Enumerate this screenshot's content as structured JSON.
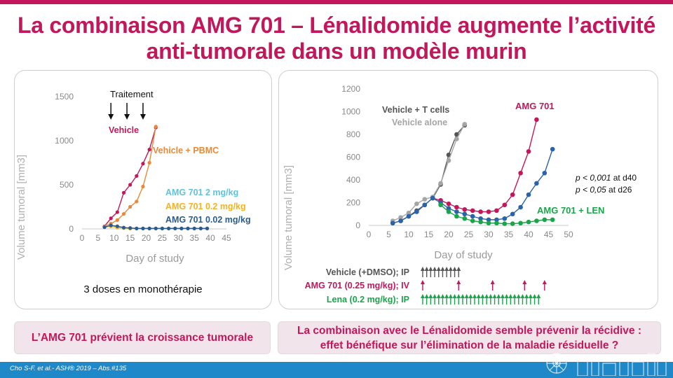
{
  "title": {
    "line1": "La combinaison AMG 701 – Lénalidomide augmente l’activité",
    "line2": "anti-tumorale dans un modèle murin"
  },
  "left_panel": {
    "treatment_label": "Traitement",
    "caption": "3 doses en monothérapie"
  },
  "right_panel": {
    "stats": [
      {
        "p": "p < 0,001",
        "at": " at d40"
      },
      {
        "p": "p < 0,05",
        "at": " at d26"
      }
    ],
    "dosing": [
      {
        "label": "Vehicle (+DMSO); IP",
        "color": "#555555"
      },
      {
        "label": "AMG 701 (0.25 mg/kg); IV",
        "color": "#c2185b"
      },
      {
        "label": "Lena (0.2 mg/kg); IP",
        "color": "#1aa54a"
      }
    ]
  },
  "conclusions": {
    "left": "L’AMG 701 prévient la croissance tumorale",
    "right_line1": "La combinaison avec le Lénalidomide semble prévenir la récidive :",
    "right_line2": "effet bénéfique sur l’élimination de la maladie résiduelle ?"
  },
  "footer": {
    "reference": "Cho S-F. et al.- ASH® 2019 – Abs.#135"
  },
  "chart_data": [
    {
      "type": "line",
      "xlabel": "Day of study",
      "ylabel": "Volume tumoral [mm3]",
      "xlim": [
        0,
        45
      ],
      "ylim": [
        0,
        1500
      ],
      "xticks": [
        0,
        5,
        10,
        15,
        20,
        25,
        30,
        35,
        40,
        45
      ],
      "yticks": [
        0,
        500,
        1000,
        1500
      ],
      "treatment_days": [
        9,
        14,
        19
      ],
      "series": [
        {
          "name": "Vehicle",
          "color": "#c2185b",
          "x": [
            7,
            9,
            11,
            13,
            15,
            17,
            19,
            21,
            23
          ],
          "y": [
            30,
            120,
            190,
            410,
            500,
            600,
            740,
            900,
            1150
          ]
        },
        {
          "name": "Vehicle + PBMC",
          "color": "#e8893a",
          "x": [
            7,
            9,
            11,
            13,
            15,
            17,
            19,
            21,
            23
          ],
          "y": [
            30,
            60,
            100,
            170,
            250,
            310,
            480,
            750,
            1160
          ]
        },
        {
          "name": "AMG 701 2 mg/kg",
          "color": "#62c2da",
          "x": [
            7,
            9,
            11,
            13,
            15,
            17,
            19,
            21,
            23,
            25,
            27,
            29,
            31,
            33,
            35,
            37,
            39
          ],
          "y": [
            20,
            30,
            20,
            10,
            5,
            5,
            5,
            5,
            5,
            5,
            5,
            5,
            5,
            5,
            5,
            5,
            5
          ]
        },
        {
          "name": "AMG 701 0.2 mg/kg",
          "color": "#f0b323",
          "x": [
            7,
            9,
            11,
            13,
            15,
            17,
            19,
            21,
            23,
            25,
            27,
            29,
            31,
            33,
            35,
            37,
            39
          ],
          "y": [
            20,
            30,
            15,
            10,
            5,
            5,
            5,
            5,
            5,
            5,
            5,
            5,
            5,
            5,
            5,
            5,
            5
          ]
        },
        {
          "name": "AMG 701 0.02 mg/kg",
          "color": "#2a5c8f",
          "x": [
            7,
            9,
            11,
            13,
            15,
            17,
            19,
            21,
            23,
            25,
            27,
            29,
            31,
            33,
            35,
            37,
            39
          ],
          "y": [
            20,
            40,
            30,
            15,
            10,
            5,
            5,
            5,
            5,
            5,
            5,
            5,
            5,
            5,
            5,
            5,
            5
          ]
        }
      ]
    },
    {
      "type": "line",
      "xlabel": "Day of study",
      "ylabel": "Volume tumoral [mm3]",
      "xlim": [
        0,
        50
      ],
      "ylim": [
        0,
        1200
      ],
      "xticks": [
        0,
        5,
        10,
        15,
        20,
        25,
        30,
        35,
        40,
        45,
        50
      ],
      "yticks": [
        0,
        200,
        400,
        600,
        800,
        1000,
        1200
      ],
      "dosing_days": {
        "vehicle": [
          13.5,
          14.5,
          15.5,
          16.5,
          17.5,
          18.5,
          19.5,
          20.5,
          21.5,
          22.5
        ],
        "amg701": [
          13.5,
          22.5,
          31,
          39,
          44
        ],
        "lena": [
          13.5,
          14.5,
          15.5,
          16.5,
          17.5,
          18.5,
          19.5,
          20.5,
          21.5,
          22.5,
          23.5,
          24.5,
          25.5,
          26.5,
          27.5,
          28.5,
          29.5,
          30.5,
          31.5,
          32.5,
          33.5,
          34.5,
          35.5,
          36.5,
          37.5,
          38.5,
          39.5,
          40.5,
          41.5,
          42.5
        ]
      },
      "series": [
        {
          "name": "Vehicle + T cells",
          "color": "#555555",
          "x": [
            6,
            8,
            10,
            12,
            14,
            16,
            18,
            20,
            22,
            24
          ],
          "y": [
            20,
            40,
            80,
            130,
            180,
            240,
            360,
            620,
            800,
            880
          ]
        },
        {
          "name": "Vehicle alone",
          "color": "#a5a5a5",
          "x": [
            6,
            8,
            10,
            12,
            14,
            16,
            18,
            20,
            22,
            24
          ],
          "y": [
            40,
            70,
            110,
            190,
            230,
            250,
            370,
            570,
            760,
            890
          ]
        },
        {
          "name": "AMG 701",
          "color": "#c2185b",
          "x": [
            16,
            18,
            20,
            22,
            24,
            26,
            28,
            30,
            32,
            34,
            36,
            38,
            40,
            42
          ],
          "y": [
            240,
            220,
            190,
            160,
            140,
            130,
            120,
            120,
            130,
            180,
            270,
            460,
            650,
            930
          ]
        },
        {
          "name": "",
          "color": "#2a64a8",
          "x": [
            6,
            8,
            10,
            12,
            14,
            16,
            18,
            20,
            22,
            24,
            26,
            28,
            30,
            32,
            34,
            36,
            38,
            40,
            42,
            44,
            46
          ],
          "y": [
            20,
            40,
            80,
            120,
            180,
            240,
            200,
            150,
            120,
            100,
            80,
            60,
            50,
            50,
            60,
            100,
            160,
            270,
            370,
            460,
            670
          ]
        },
        {
          "name": "AMG 701 + LEN",
          "color": "#1aa54a",
          "x": [
            18,
            20,
            22,
            24,
            26,
            28,
            30,
            32,
            34,
            36,
            38,
            40,
            42,
            44,
            46
          ],
          "y": [
            180,
            120,
            80,
            60,
            40,
            30,
            20,
            20,
            15,
            15,
            20,
            30,
            40,
            50,
            50
          ]
        }
      ]
    }
  ]
}
